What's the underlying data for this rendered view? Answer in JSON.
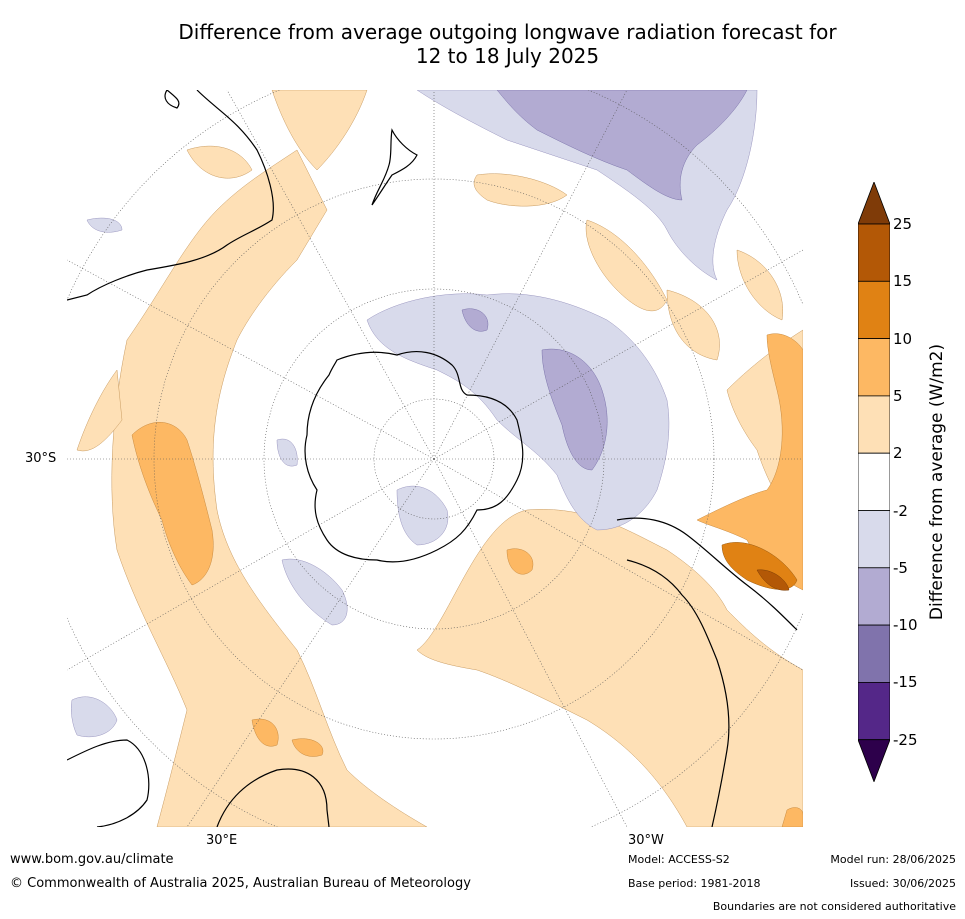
{
  "title": {
    "line1": "Difference from average outgoing longwave radiation forecast for",
    "line2": "12 to 18 July 2025"
  },
  "map": {
    "projection": "south polar stereographic",
    "graticule_labels": {
      "lat_30s": "30°S",
      "lon_30e": "30°E",
      "lon_30w": "30°W"
    }
  },
  "colorbar": {
    "label": "Difference from average (W/m2)",
    "ticks": [
      "25",
      "15",
      "10",
      "5",
      "2",
      "-2",
      "-5",
      "-10",
      "-15",
      "-25"
    ],
    "bins": [
      {
        "range": ">25",
        "color": "#7f3b08"
      },
      {
        "range": "15 to 25",
        "color": "#b35806"
      },
      {
        "range": "10 to 15",
        "color": "#e08214"
      },
      {
        "range": "5 to 10",
        "color": "#fdb863"
      },
      {
        "range": "2 to 5",
        "color": "#fee0b6"
      },
      {
        "range": "-2 to 2",
        "color": "#ffffff"
      },
      {
        "range": "-5 to -2",
        "color": "#d8daeb"
      },
      {
        "range": "-10 to -5",
        "color": "#b2abd2"
      },
      {
        "range": "-15 to -10",
        "color": "#8073ac"
      },
      {
        "range": "-25 to -15",
        "color": "#542788"
      },
      {
        "range": "<-25",
        "color": "#2d004b"
      }
    ]
  },
  "footer": {
    "website": "www.bom.gov.au/climate",
    "copyright": "© Commonwealth of Australia 2025, Australian Bureau of Meteorology",
    "model": "Model: ACCESS-S2",
    "base_period": "Base period: 1981-2018",
    "model_run": "Model run: 28/06/2025",
    "issued": "Issued: 30/06/2025",
    "disclaimer": "Boundaries are not considered authoritative"
  }
}
